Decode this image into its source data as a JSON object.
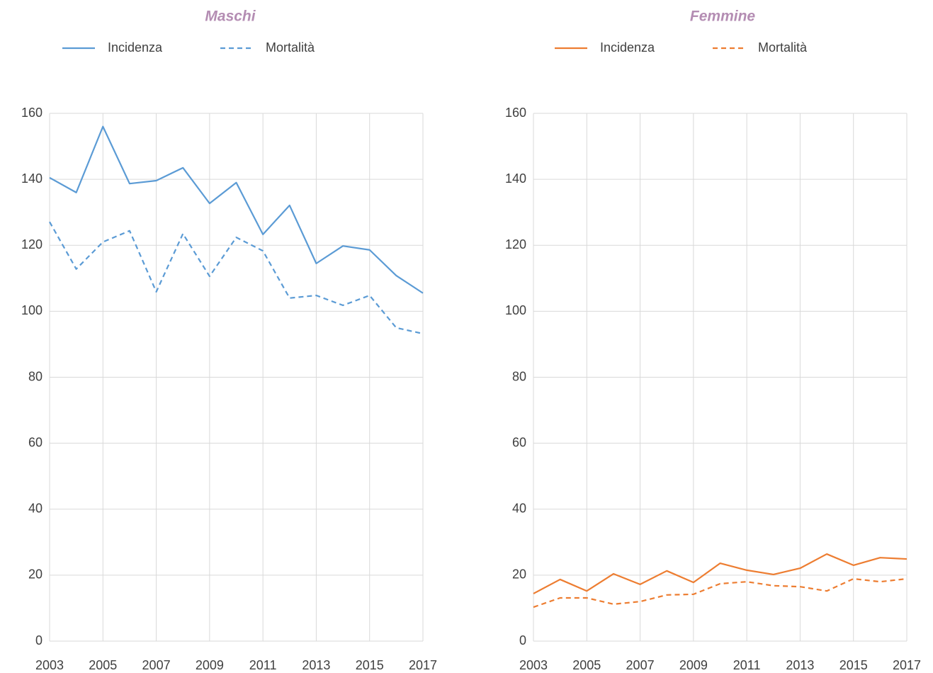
{
  "chart_data": [
    {
      "type": "line",
      "title": "Maschi",
      "x": [
        2003,
        2004,
        2005,
        2006,
        2007,
        2008,
        2009,
        2010,
        2011,
        2012,
        2013,
        2014,
        2015,
        2016,
        2017
      ],
      "xlim": [
        2003,
        2017
      ],
      "xticks": [
        2003,
        2005,
        2007,
        2009,
        2011,
        2013,
        2015,
        2017
      ],
      "ylim": [
        0,
        160
      ],
      "yticks": [
        0,
        20,
        40,
        60,
        80,
        100,
        120,
        140,
        160
      ],
      "grid": true,
      "legend": "top",
      "series": [
        {
          "name": "Incidenza",
          "color": "#5b9bd5",
          "line_style": "solid",
          "values": [
            140.5,
            136,
            156,
            138.7,
            139.6,
            143.5,
            132.7,
            139,
            123.3,
            132.1,
            114.5,
            119.8,
            118.6,
            110.8,
            105.5
          ]
        },
        {
          "name": "Mortalità",
          "color": "#5b9bd5",
          "line_style": "dashed",
          "values": [
            127.1,
            112.8,
            121,
            124.4,
            105.9,
            123.5,
            110.6,
            122.4,
            118.3,
            104,
            104.8,
            101.8,
            104.8,
            95,
            93.2
          ]
        }
      ]
    },
    {
      "type": "line",
      "title": "Femmine",
      "x": [
        2003,
        2004,
        2005,
        2006,
        2007,
        2008,
        2009,
        2010,
        2011,
        2012,
        2013,
        2014,
        2015,
        2016,
        2017
      ],
      "xlim": [
        2003,
        2017
      ],
      "xticks": [
        2003,
        2005,
        2007,
        2009,
        2011,
        2013,
        2015,
        2017
      ],
      "ylim": [
        0,
        160
      ],
      "yticks": [
        0,
        20,
        40,
        60,
        80,
        100,
        120,
        140,
        160
      ],
      "grid": true,
      "legend": "top",
      "series": [
        {
          "name": "Incidenza",
          "color": "#ed7d31",
          "line_style": "solid",
          "values": [
            14.4,
            18.7,
            15.2,
            20.4,
            17.2,
            21.3,
            17.8,
            23.6,
            21.5,
            20.2,
            22.1,
            26.4,
            23,
            25.3,
            24.9
          ]
        },
        {
          "name": "Mortalità",
          "color": "#ed7d31",
          "line_style": "dashed",
          "values": [
            10.3,
            13.1,
            13.1,
            11.2,
            12,
            14,
            14.2,
            17.4,
            18,
            16.8,
            16.5,
            15.2,
            18.9,
            18,
            18.9
          ]
        }
      ]
    }
  ]
}
